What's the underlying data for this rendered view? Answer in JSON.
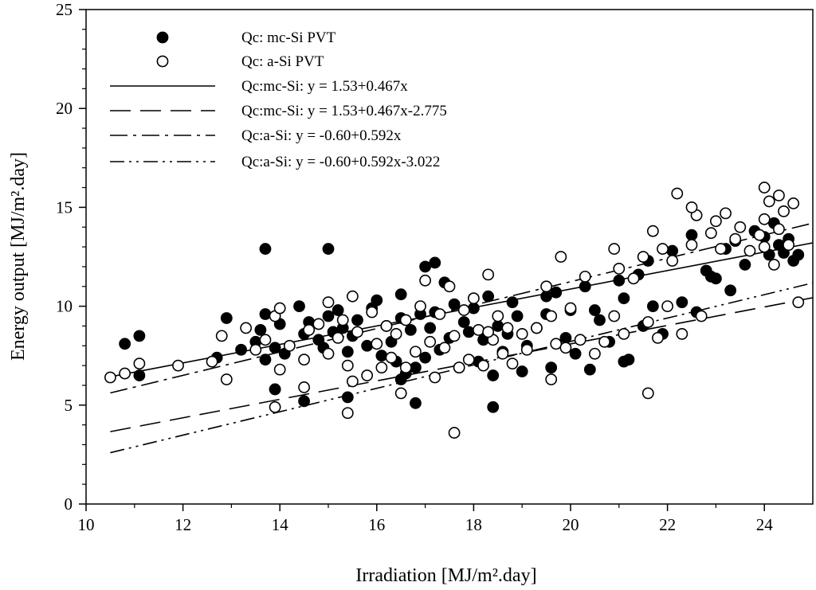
{
  "chart_data": {
    "type": "scatter",
    "title": "",
    "xlabel": "Irradiation [MJ/m².day]",
    "ylabel": "Energy output [MJ/m².day]",
    "xlim": [
      10,
      25
    ],
    "ylim": [
      0,
      25
    ],
    "x_ticks": [
      10,
      12,
      14,
      16,
      18,
      20,
      22,
      24
    ],
    "y_ticks": [
      0,
      5,
      10,
      15,
      20,
      25
    ],
    "grid": false,
    "legend_position": "top-left",
    "legend": [
      {
        "label": "Qc: mc-Si PVT",
        "kind": "filled-marker"
      },
      {
        "label": "Qc: a-Si PVT",
        "kind": "open-marker"
      },
      {
        "label": "Qc:mc-Si: y = 1.53+0.467x",
        "kind": "solid"
      },
      {
        "label": "Qc:mc-Si: y = 1.53+0.467x-2.775",
        "kind": "long-dash"
      },
      {
        "label": "Qc:a-Si: y = -0.60+0.592x",
        "kind": "dash-dot"
      },
      {
        "label": "Qc:a-Si: y = -0.60+0.592x-3.022",
        "kind": "dash-dot-dot"
      }
    ],
    "series": [
      {
        "name": "Qc: mc-Si PVT",
        "marker": "filled",
        "x": [
          10.8,
          11.1,
          11.1,
          12.7,
          12.9,
          13.2,
          13.5,
          13.6,
          13.7,
          13.7,
          13.9,
          13.9,
          14.0,
          14.1,
          14.4,
          14.5,
          14.6,
          14.8,
          14.9,
          15.0,
          15.1,
          15.2,
          15.3,
          15.4,
          15.5,
          15.6,
          15.8,
          15.9,
          16.0,
          16.1,
          16.2,
          16.3,
          16.4,
          16.5,
          16.5,
          16.6,
          16.7,
          16.8,
          16.9,
          17.0,
          17.0,
          17.1,
          17.2,
          17.3,
          17.4,
          17.5,
          17.6,
          17.7,
          17.8,
          17.9,
          18.0,
          18.1,
          18.2,
          18.3,
          18.4,
          18.5,
          18.6,
          18.7,
          18.8,
          18.9,
          19.0,
          19.1,
          19.3,
          19.5,
          19.6,
          19.7,
          19.9,
          20.0,
          20.1,
          20.3,
          20.4,
          20.6,
          20.8,
          21.0,
          21.1,
          21.2,
          21.4,
          21.5,
          21.6,
          21.7,
          21.9,
          22.1,
          22.3,
          22.5,
          22.6,
          22.8,
          23.0,
          23.2,
          23.4,
          23.6,
          23.8,
          24.0,
          24.1,
          24.2,
          24.3,
          24.4,
          24.5,
          24.6,
          24.7,
          22.9,
          23.3,
          19.5,
          20.5,
          21.1,
          18.4,
          16.8,
          15.4,
          14.5,
          13.9,
          15.0,
          13.7,
          17.2,
          16.5
        ],
        "y": [
          8.1,
          8.5,
          6.5,
          7.4,
          9.4,
          7.8,
          8.2,
          8.8,
          9.6,
          7.3,
          7.9,
          5.8,
          9.1,
          7.6,
          10.0,
          8.6,
          9.2,
          8.3,
          7.9,
          9.5,
          8.7,
          9.8,
          8.9,
          7.7,
          8.5,
          9.3,
          8.0,
          9.9,
          10.3,
          7.5,
          9.0,
          8.2,
          7.2,
          10.6,
          9.4,
          6.6,
          8.8,
          6.9,
          9.6,
          12.0,
          7.4,
          8.9,
          9.7,
          7.8,
          11.2,
          8.4,
          10.1,
          6.9,
          9.2,
          8.7,
          9.9,
          7.2,
          8.3,
          10.5,
          6.5,
          9.0,
          7.7,
          8.6,
          10.2,
          9.5,
          6.7,
          8.0,
          8.9,
          9.6,
          6.9,
          10.7,
          8.4,
          9.8,
          7.6,
          11.0,
          6.8,
          9.3,
          8.2,
          11.3,
          10.4,
          7.3,
          11.6,
          9.0,
          12.3,
          10.0,
          8.6,
          12.8,
          10.2,
          13.6,
          9.7,
          11.8,
          11.4,
          12.9,
          13.3,
          12.1,
          13.8,
          13.5,
          12.6,
          14.2,
          13.1,
          12.7,
          13.4,
          12.3,
          12.6,
          11.5,
          10.8,
          10.5,
          9.8,
          7.2,
          4.9,
          5.1,
          5.4,
          5.2,
          5.8,
          12.9,
          12.9,
          12.2,
          6.3
        ]
      },
      {
        "name": "Qc: a-Si PVT",
        "marker": "open",
        "x": [
          10.5,
          10.8,
          11.1,
          11.9,
          12.6,
          12.8,
          12.9,
          13.3,
          13.5,
          13.7,
          13.9,
          14.0,
          14.0,
          14.2,
          14.5,
          14.6,
          14.8,
          15.0,
          15.0,
          15.2,
          15.3,
          15.4,
          15.5,
          15.6,
          15.8,
          15.9,
          16.0,
          16.1,
          16.2,
          16.3,
          16.4,
          16.5,
          16.6,
          16.8,
          16.9,
          17.0,
          17.1,
          17.2,
          17.3,
          17.4,
          17.5,
          17.6,
          17.7,
          17.8,
          17.9,
          18.0,
          18.1,
          18.2,
          18.3,
          18.4,
          18.5,
          18.6,
          18.7,
          18.8,
          19.0,
          19.1,
          19.3,
          19.5,
          19.6,
          19.7,
          19.8,
          19.9,
          20.0,
          20.2,
          20.3,
          20.5,
          20.7,
          20.9,
          21.0,
          21.1,
          21.3,
          21.5,
          21.6,
          21.7,
          21.8,
          21.9,
          22.0,
          22.1,
          22.2,
          22.3,
          22.5,
          22.6,
          22.7,
          22.9,
          23.0,
          23.1,
          23.2,
          23.4,
          23.5,
          23.7,
          23.9,
          24.0,
          24.0,
          24.1,
          24.2,
          24.3,
          24.4,
          24.5,
          24.6,
          24.7,
          24.0,
          24.3,
          22.5,
          21.6,
          17.6,
          15.4,
          13.9,
          14.5,
          19.6,
          20.9,
          18.3,
          16.6,
          15.5
        ],
        "y": [
          6.4,
          6.6,
          7.1,
          7.0,
          7.2,
          8.5,
          6.3,
          8.9,
          7.8,
          8.3,
          9.5,
          6.8,
          9.9,
          8.0,
          7.3,
          8.8,
          9.1,
          10.2,
          7.6,
          8.4,
          9.3,
          7.0,
          10.5,
          8.7,
          6.5,
          9.7,
          8.1,
          6.9,
          9.0,
          7.4,
          8.6,
          5.6,
          9.3,
          7.7,
          10.0,
          11.3,
          8.2,
          6.4,
          9.6,
          7.9,
          11.0,
          8.5,
          6.9,
          9.8,
          7.3,
          10.4,
          8.8,
          7.0,
          11.6,
          8.3,
          9.5,
          7.6,
          8.9,
          7.1,
          8.6,
          7.8,
          8.9,
          11.0,
          9.5,
          8.1,
          12.5,
          7.9,
          9.9,
          8.3,
          11.5,
          7.6,
          8.2,
          12.9,
          11.9,
          8.6,
          11.4,
          12.5,
          9.2,
          13.8,
          8.4,
          12.9,
          10.0,
          12.3,
          15.7,
          8.6,
          13.1,
          14.6,
          9.5,
          13.7,
          14.3,
          12.9,
          14.7,
          13.4,
          14.0,
          12.8,
          13.6,
          16.0,
          14.4,
          15.3,
          12.1,
          15.6,
          14.8,
          13.1,
          15.2,
          10.2,
          13.0,
          13.9,
          15.0,
          5.6,
          3.6,
          4.6,
          4.9,
          5.9,
          6.3,
          9.5,
          8.7,
          6.9,
          6.2
        ]
      }
    ],
    "fit_lines": [
      {
        "name": "Qc:mc-Si: y = 1.53+0.467x",
        "intercept": 1.53,
        "slope": 0.467,
        "offset": 0,
        "x_range": [
          10.5,
          25
        ],
        "style": "solid"
      },
      {
        "name": "Qc:mc-Si: y = 1.53+0.467x-2.775",
        "intercept": 1.53,
        "slope": 0.467,
        "offset": -2.775,
        "x_range": [
          10.5,
          25
        ],
        "style": "long-dash"
      },
      {
        "name": "Qc:a-Si: y = -0.60+0.592x",
        "intercept": -0.6,
        "slope": 0.592,
        "offset": 0,
        "x_range": [
          10.5,
          25
        ],
        "style": "dash-dot"
      },
      {
        "name": "Qc:a-Si: y = -0.60+0.592x-3.022",
        "intercept": -0.6,
        "slope": 0.592,
        "offset": -3.022,
        "x_range": [
          10.5,
          25
        ],
        "style": "dash-dot-dot"
      }
    ]
  }
}
